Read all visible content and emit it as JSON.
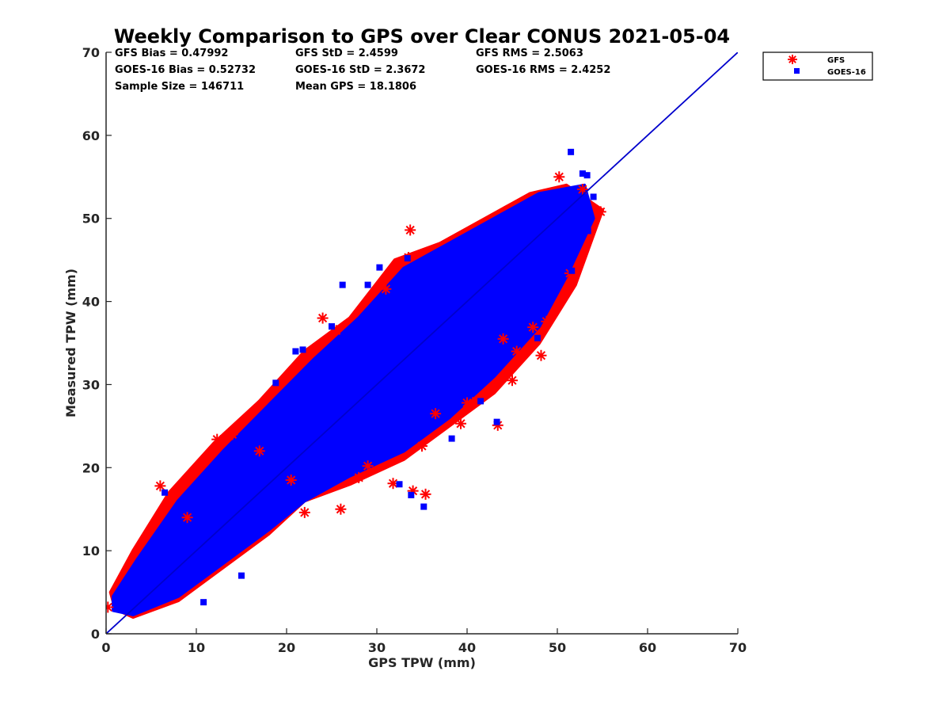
{
  "chart_data": {
    "type": "scatter",
    "title": "Weekly Comparison to GPS over Clear CONUS 2021-05-04",
    "xlabel": "GPS TPW (mm)",
    "ylabel": "Measured TPW (mm)",
    "xlim": [
      0,
      70
    ],
    "ylim": [
      0,
      70
    ],
    "xticks": [
      "0",
      "10",
      "20",
      "30",
      "40",
      "50",
      "60",
      "70"
    ],
    "yticks": [
      "0",
      "10",
      "20",
      "30",
      "40",
      "50",
      "60",
      "70"
    ],
    "grid": false,
    "legend_position": "outside-top-right",
    "stats": [
      "GFS Bias = 0.47992",
      "GFS StD = 2.4599",
      "GFS RMS = 2.5063",
      "GOES-16 Bias = 0.52732",
      "GOES-16 StD = 2.3672",
      "GOES-16 RMS = 2.4252",
      "Sample Size = 146711",
      "Mean GPS = 18.1806"
    ],
    "reference_line": {
      "name": "1:1",
      "x": [
        0,
        70
      ],
      "y": [
        0,
        70
      ],
      "color": "#0000cc"
    },
    "series": [
      {
        "name": "GFS",
        "marker": "asterisk",
        "color": "#ff0000",
        "cloud": [
          [
            1,
            3
          ],
          [
            3,
            2
          ],
          [
            8,
            4
          ],
          [
            13,
            8
          ],
          [
            18,
            12
          ],
          [
            22,
            16
          ],
          [
            27,
            18
          ],
          [
            33,
            21
          ],
          [
            38,
            25
          ],
          [
            43,
            29
          ],
          [
            48,
            35
          ],
          [
            52,
            42
          ],
          [
            55,
            51
          ],
          [
            51,
            54
          ],
          [
            47,
            53
          ],
          [
            42,
            50
          ],
          [
            37,
            47
          ],
          [
            32,
            45
          ],
          [
            27,
            38
          ],
          [
            22,
            34
          ],
          [
            17,
            28
          ],
          [
            12,
            23
          ],
          [
            7,
            17
          ],
          [
            3,
            10
          ],
          [
            0.5,
            5
          ]
        ],
        "points": [
          [
            0.2,
            3.2
          ],
          [
            6,
            17.8
          ],
          [
            12.3,
            23.4
          ],
          [
            14,
            24
          ],
          [
            24,
            38
          ],
          [
            25.5,
            36.5
          ],
          [
            33.7,
            48.6
          ],
          [
            33.5,
            45.3
          ],
          [
            31,
            41.5
          ],
          [
            35,
            22.6
          ],
          [
            35.4,
            16.8
          ],
          [
            34,
            17.2
          ],
          [
            31.8,
            18.1
          ],
          [
            29,
            20.2
          ],
          [
            40,
            27.8
          ],
          [
            41,
            28
          ],
          [
            43.4,
            25.1
          ],
          [
            45,
            30.5
          ],
          [
            47.3,
            36.9
          ],
          [
            48.2,
            33.5
          ],
          [
            48.8,
            37.6
          ],
          [
            51.4,
            43.4
          ],
          [
            54.8,
            50.8
          ],
          [
            50.2,
            55
          ],
          [
            52.8,
            53.5
          ],
          [
            39.3,
            25.3
          ],
          [
            44,
            35.5
          ],
          [
            20.5,
            18.5
          ],
          [
            17,
            22
          ],
          [
            9,
            14
          ],
          [
            26,
            15
          ],
          [
            36.5,
            26.5
          ],
          [
            45.5,
            34
          ],
          [
            28,
            18.8
          ],
          [
            22,
            14.6
          ]
        ]
      },
      {
        "name": "GOES-16",
        "marker": "square",
        "color": "#0000ff",
        "cloud": [
          [
            0.8,
            2.8
          ],
          [
            3,
            2.3
          ],
          [
            8,
            4.5
          ],
          [
            13,
            8.5
          ],
          [
            18,
            12.5
          ],
          [
            22,
            16
          ],
          [
            27,
            19
          ],
          [
            33,
            22
          ],
          [
            38,
            26
          ],
          [
            43,
            31
          ],
          [
            48,
            37
          ],
          [
            51,
            43
          ],
          [
            54,
            50
          ],
          [
            53,
            54
          ],
          [
            48,
            53
          ],
          [
            43,
            50
          ],
          [
            38,
            47
          ],
          [
            33,
            44
          ],
          [
            28,
            38
          ],
          [
            23,
            33
          ],
          [
            18,
            27.5
          ],
          [
            13,
            22
          ],
          [
            8,
            16
          ],
          [
            3.5,
            9
          ],
          [
            0.8,
            4.5
          ]
        ],
        "points": [
          [
            51.5,
            58
          ],
          [
            52.8,
            55.4
          ],
          [
            53.3,
            55.2
          ],
          [
            29,
            42
          ],
          [
            26.2,
            42
          ],
          [
            30.3,
            44.1
          ],
          [
            33.4,
            45.2
          ],
          [
            25,
            37
          ],
          [
            21.8,
            34.2
          ],
          [
            21,
            34
          ],
          [
            18.8,
            30.2
          ],
          [
            35.2,
            15.3
          ],
          [
            32.5,
            18
          ],
          [
            33.8,
            16.7
          ],
          [
            38.3,
            23.5
          ],
          [
            43.3,
            25.5
          ],
          [
            47.8,
            35.6
          ],
          [
            51.6,
            43.7
          ],
          [
            53.4,
            48.5
          ],
          [
            54,
            52.6
          ],
          [
            12.5,
            19
          ],
          [
            6.5,
            17
          ],
          [
            9.5,
            15.5
          ],
          [
            10.8,
            3.8
          ],
          [
            27.5,
            22.3
          ],
          [
            41.5,
            28
          ],
          [
            30.5,
            24
          ],
          [
            15,
            7
          ]
        ]
      }
    ]
  }
}
